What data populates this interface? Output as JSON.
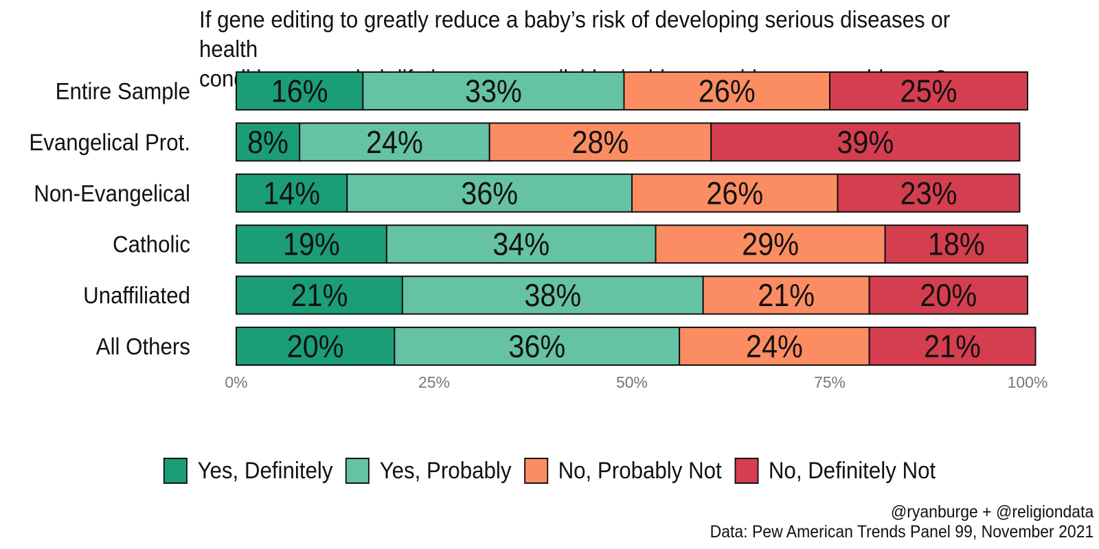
{
  "title_lines": [
    "If gene editing to greatly reduce a baby’s risk of developing serious diseases or health",
    "conditions over their lifetime were available, is this something you would want?"
  ],
  "footer": {
    "credit": "@ryanburge + @religiondata",
    "source": "Data: Pew American Trends Panel 99, November 2021"
  },
  "chart_data": {
    "type": "bar",
    "orientation": "horizontal",
    "stacked": true,
    "categories": [
      "Entire Sample",
      "Evangelical Prot.",
      "Non-Evangelical",
      "Catholic",
      "Unaffiliated",
      "All Others"
    ],
    "series": [
      {
        "name": "Yes, Definitely",
        "color": "#1b9e77",
        "values": [
          16,
          8,
          14,
          19,
          21,
          20
        ],
        "labels": [
          "16%",
          "8%",
          "14%",
          "19%",
          "21%",
          "20%"
        ]
      },
      {
        "name": "Yes, Probably",
        "color": "#66c2a5",
        "values": [
          33,
          24,
          36,
          34,
          38,
          36
        ],
        "labels": [
          "33%",
          "24%",
          "36%",
          "34%",
          "38%",
          "36%"
        ]
      },
      {
        "name": "No, Probably Not",
        "color": "#fc8d62",
        "values": [
          26,
          28,
          26,
          29,
          21,
          24
        ],
        "labels": [
          "26%",
          "28%",
          "26%",
          "29%",
          "21%",
          "24%"
        ]
      },
      {
        "name": "No, Definitely Not",
        "color": "#d53e4f",
        "values": [
          25,
          39,
          23,
          18,
          20,
          21
        ],
        "labels": [
          "25%",
          "39%",
          "23%",
          "18%",
          "20%",
          "21%"
        ]
      }
    ],
    "xlim": [
      0,
      100
    ],
    "xticks": [
      0,
      25,
      50,
      75,
      100
    ],
    "xtick_labels": [
      "0%",
      "25%",
      "50%",
      "75%",
      "100%"
    ],
    "grid": false,
    "legend_position": "bottom"
  }
}
